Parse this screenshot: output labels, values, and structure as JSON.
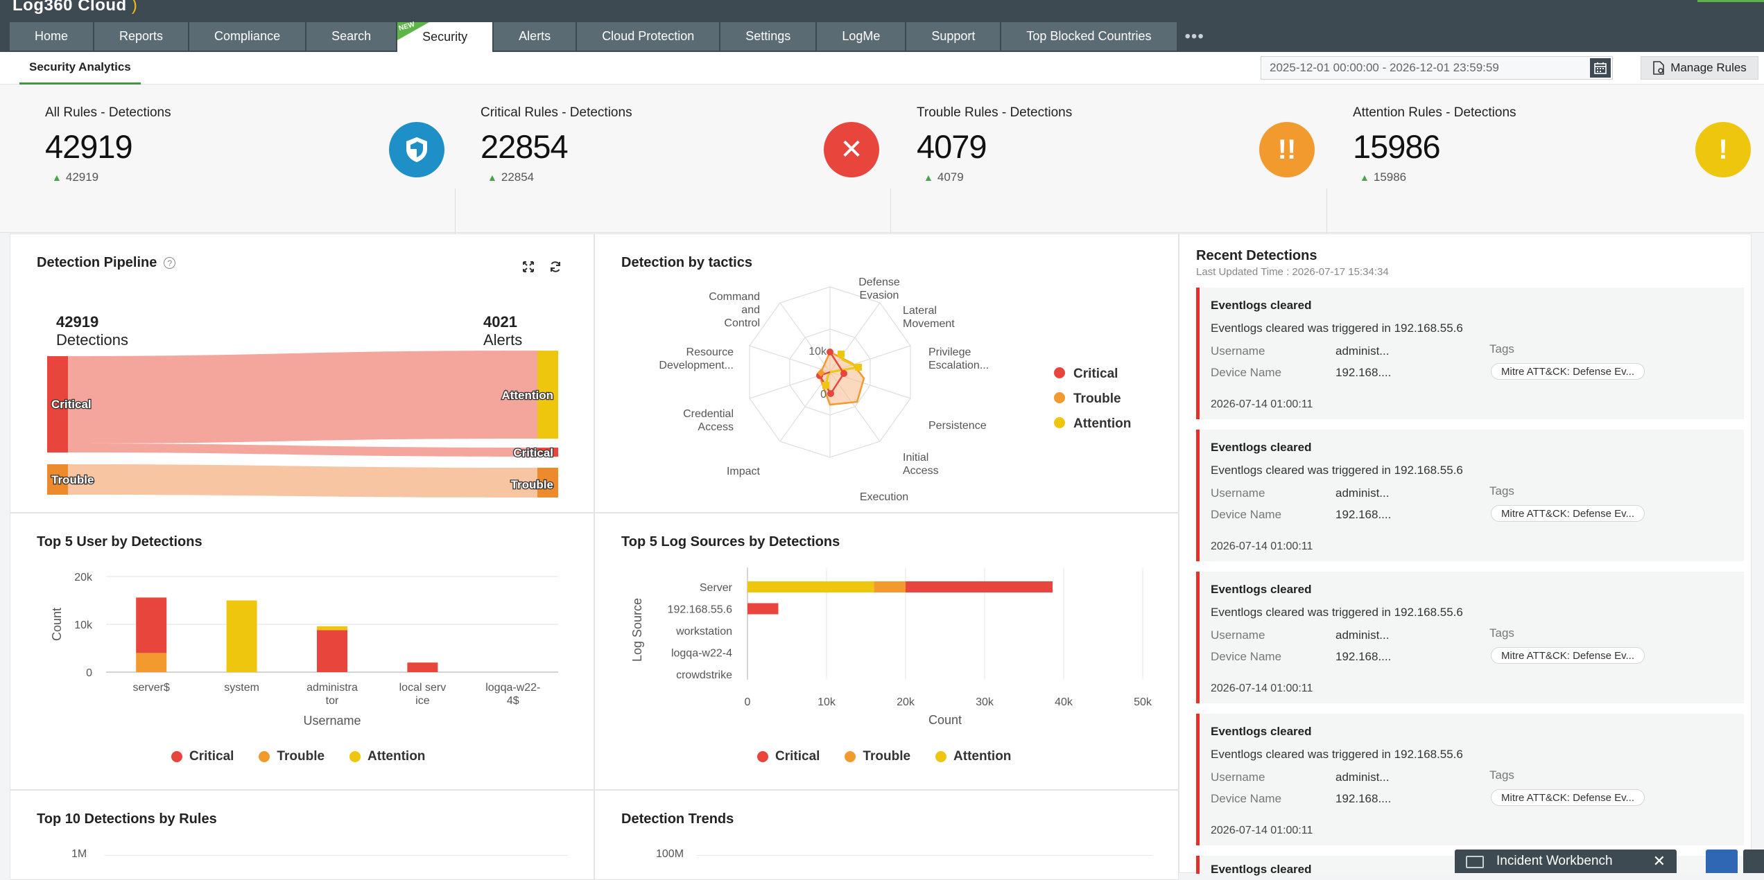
{
  "app": {
    "title": "Log360 Cloud"
  },
  "nav": {
    "tabs": [
      {
        "label": "Home"
      },
      {
        "label": "Reports"
      },
      {
        "label": "Compliance"
      },
      {
        "label": "Search"
      },
      {
        "label": "Security",
        "badge": "NEW",
        "active": true
      },
      {
        "label": "Alerts"
      },
      {
        "label": "Cloud Protection"
      },
      {
        "label": "Settings"
      },
      {
        "label": "LogMe"
      },
      {
        "label": "Support"
      },
      {
        "label": "Top Blocked Countries"
      }
    ],
    "more": "•••"
  },
  "subnav": {
    "active_tab": "Security Analytics",
    "date_range": "2025-12-01 00:00:00 - 2026-12-01 23:59:59",
    "manage_rules": "Manage Rules"
  },
  "kpis": [
    {
      "title": "All Rules - Detections",
      "value": "42919",
      "delta": "42919",
      "color": "#1f8fc7",
      "icon": "shield-icon"
    },
    {
      "title": "Critical Rules - Detections",
      "value": "22854",
      "delta": "22854",
      "color": "#e8453c",
      "icon": "x-icon",
      "glyph": "✕"
    },
    {
      "title": "Trouble Rules - Detections",
      "value": "4079",
      "delta": "4079",
      "color": "#f39a2e",
      "icon": "double-exclamation-icon",
      "glyph": "!!"
    },
    {
      "title": "Attention Rules - Detections",
      "value": "15986",
      "delta": "15986",
      "color": "#efc60e",
      "icon": "exclamation-icon",
      "glyph": "!"
    }
  ],
  "pipeline": {
    "title": "Detection Pipeline",
    "help": "?",
    "left_value": "42919",
    "left_label": "Detections",
    "right_value": "4021",
    "right_label": "Alerts",
    "nodes": [
      "Critical",
      "Trouble",
      "Attention",
      "Critical",
      "Trouble"
    ]
  },
  "tactics": {
    "title": "Detection by tactics",
    "axes": [
      "Defense Evasion",
      "Lateral Movement",
      "Privilege Escalation...",
      "Persistence",
      "Initial Access",
      "Execution",
      "Impact",
      "Credential Access",
      "Resource Development...",
      "Command and Control"
    ],
    "ticks": [
      "0",
      "10k"
    ],
    "legend": [
      "Critical",
      "Trouble",
      "Attention"
    ]
  },
  "top_users": {
    "title": "Top 5 User by Detections",
    "chart_data": {
      "type": "bar",
      "stacked": true,
      "categories": [
        "server$",
        "system",
        "administrator",
        "local service",
        "logqa-w22-4$"
      ],
      "series": [
        {
          "name": "Critical",
          "values": [
            11600,
            0,
            8800,
            2000,
            0
          ],
          "color": "#e8453c"
        },
        {
          "name": "Trouble",
          "values": [
            4000,
            0,
            0,
            0,
            0
          ],
          "color": "#f39a2e"
        },
        {
          "name": "Attention",
          "values": [
            0,
            15000,
            800,
            0,
            0
          ],
          "color": "#efc60e"
        }
      ],
      "yticks": [
        "0",
        "10k",
        "20k"
      ],
      "ylim": [
        0,
        20000
      ],
      "xlabel": "Username",
      "ylabel": "Count"
    }
  },
  "top_sources": {
    "title": "Top 5 Log Sources by Detections",
    "chart_data": {
      "type": "bar",
      "orientation": "horizontal",
      "stacked": true,
      "categories": [
        "Server",
        "192.168.55.6",
        "workstation",
        "logqa-w22-4",
        "crowdstrike"
      ],
      "series": [
        {
          "name": "Attention",
          "values": [
            16000,
            0,
            0,
            0,
            0
          ],
          "color": "#efc60e"
        },
        {
          "name": "Trouble",
          "values": [
            4000,
            0,
            0,
            0,
            0
          ],
          "color": "#f39a2e"
        },
        {
          "name": "Critical",
          "values": [
            18600,
            3900,
            0,
            0,
            0
          ],
          "color": "#e8453c"
        }
      ],
      "xticks": [
        "0",
        "10k",
        "20k",
        "30k",
        "40k",
        "50k"
      ],
      "xlim": [
        0,
        50000
      ],
      "xlabel": "Count",
      "ylabel": "Log Source"
    },
    "legend": [
      "Critical",
      "Trouble",
      "Attention"
    ]
  },
  "top_rules": {
    "title": "Top 10 Detections by Rules",
    "ytick": "1M"
  },
  "trends": {
    "title": "Detection Trends",
    "ytick": "100M"
  },
  "recent": {
    "title": "Recent Detections",
    "updated": "Last Updated Time : 2026-07-17 15:34:34",
    "username_label": "Username",
    "device_label": "Device Name",
    "tags_label": "Tags",
    "items": [
      {
        "name": "Eventlogs cleared",
        "desc": "Eventlogs cleared was triggered in 192.168.55.6",
        "username": "administ...",
        "device": "192.168....",
        "tag": "Mitre ATT&CK: Defense Ev...",
        "time": "2026-07-14 01:00:11"
      },
      {
        "name": "Eventlogs cleared",
        "desc": "Eventlogs cleared was triggered in 192.168.55.6",
        "username": "administ...",
        "device": "192.168....",
        "tag": "Mitre ATT&CK: Defense Ev...",
        "time": "2026-07-14 01:00:11"
      },
      {
        "name": "Eventlogs cleared",
        "desc": "Eventlogs cleared was triggered in 192.168.55.6",
        "username": "administ...",
        "device": "192.168....",
        "tag": "Mitre ATT&CK: Defense Ev...",
        "time": "2026-07-14 01:00:11"
      },
      {
        "name": "Eventlogs cleared",
        "desc": "Eventlogs cleared was triggered in 192.168.55.6",
        "username": "administ...",
        "device": "192.168....",
        "tag": "Mitre ATT&CK: Defense Ev...",
        "time": "2026-07-14 01:00:11"
      },
      {
        "name": "Eventlogs cleared"
      }
    ]
  },
  "workbench": {
    "label": "Incident Workbench",
    "close": "✕"
  }
}
